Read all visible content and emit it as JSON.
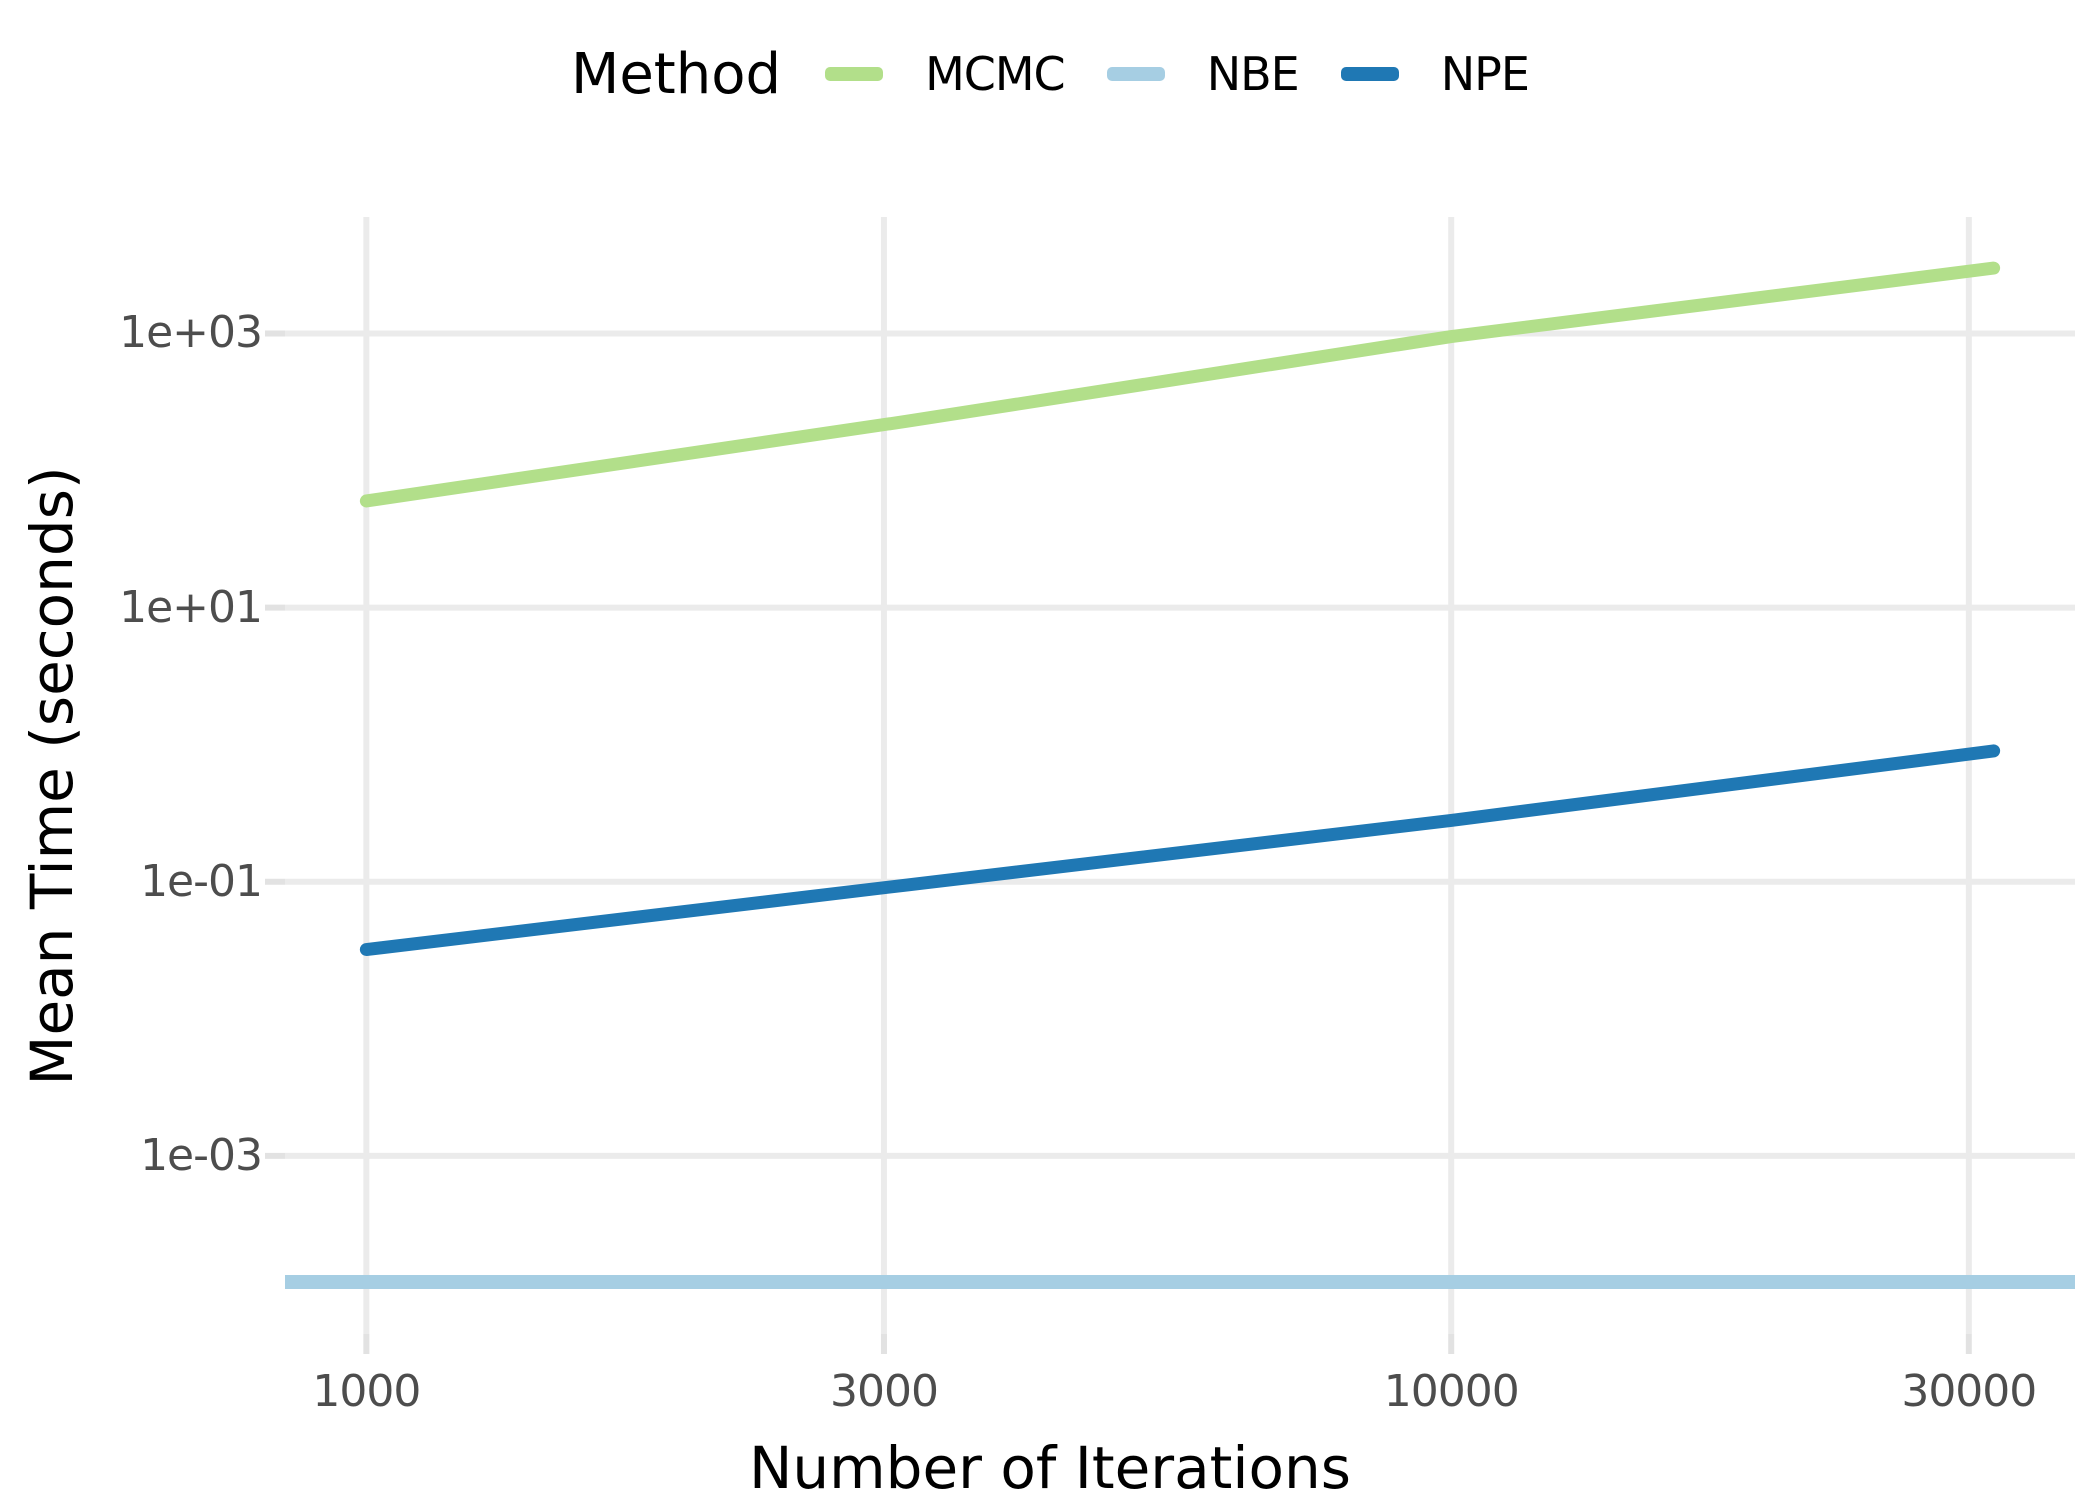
{
  "chart_data": {
    "type": "line",
    "legend_title": "Method",
    "xlabel": "Number of Iterations",
    "ylabel": "Mean Time (seconds)",
    "x_scale": "log10",
    "y_scale": "log10",
    "grid": true,
    "legend_position": "top-center",
    "x": [
      1000,
      3162,
      10000,
      31623
    ],
    "series": [
      {
        "name": "MCMC",
        "color": "#b2df8a",
        "values": [
          60,
          230,
          950,
          3000
        ]
      },
      {
        "name": "NBE",
        "color": "#a6cee3",
        "values": [
          0.00012,
          0.00012,
          0.00012,
          0.00012
        ],
        "render": "hline-full-width"
      },
      {
        "name": "NPE",
        "color": "#1f78b4",
        "values": [
          0.032,
          0.095,
          0.28,
          0.9
        ]
      }
    ],
    "x_ticks": [
      {
        "value": 1000,
        "label": "1000"
      },
      {
        "value": 3000,
        "label": "3000"
      },
      {
        "value": 10000,
        "label": "10000"
      },
      {
        "value": 30000,
        "label": "30000"
      }
    ],
    "y_ticks": [
      {
        "value": 1000,
        "label": "1e+03"
      },
      {
        "value": 10,
        "label": "1e+01"
      },
      {
        "value": 0.1,
        "label": "1e-01"
      },
      {
        "value": 0.001,
        "label": "1e-03"
      }
    ],
    "xlim_log10": [
      2.925,
      4.575
    ],
    "ylim_log10": [
      -4.3,
      3.85
    ],
    "colors": {
      "background": "#ffffff",
      "gridline": "#ebebeb",
      "tick_mark": "#e2e2e2",
      "tick_label": "#4d4d4d",
      "axis_title": "#000000"
    }
  }
}
